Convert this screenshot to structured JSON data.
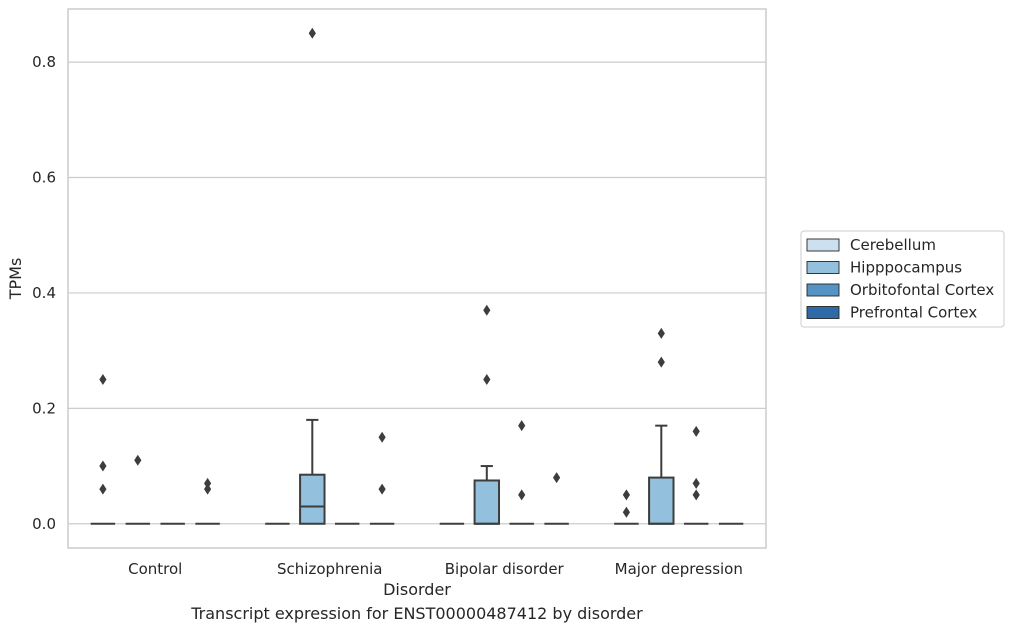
{
  "caption": "Transcript expression for ENST00000487412 by disorder",
  "chart_data": {
    "type": "box",
    "xlabel": "Disorder",
    "ylabel": "TPMs",
    "ylim": [
      -0.042,
      0.892
    ],
    "yticks": [
      0.0,
      0.2,
      0.4,
      0.6,
      0.8
    ],
    "ytick_labels": [
      "0.0",
      "0.2",
      "0.4",
      "0.6",
      "0.8"
    ],
    "grid": "horizontal",
    "legend_position": "right",
    "categories": [
      "Control",
      "Schizophrenia",
      "Bipolar disorder",
      "Major depression"
    ],
    "series": [
      {
        "name": "Cerebellum",
        "color": "#cde0f0",
        "boxes": [
          {
            "q1": 0,
            "median": 0,
            "q3": 0,
            "whislo": 0,
            "whishi": 0,
            "fliers": [
              0.25,
              0.1,
              0.06
            ]
          },
          {
            "q1": 0,
            "median": 0,
            "q3": 0,
            "whislo": 0,
            "whishi": 0,
            "fliers": []
          },
          {
            "q1": 0,
            "median": 0,
            "q3": 0,
            "whislo": 0,
            "whishi": 0,
            "fliers": []
          },
          {
            "q1": 0,
            "median": 0,
            "q3": 0,
            "whislo": 0,
            "whishi": 0,
            "fliers": [
              0.05,
              0.02
            ]
          }
        ]
      },
      {
        "name": "Hipppocampus",
        "color": "#93c0dd",
        "boxes": [
          {
            "q1": 0,
            "median": 0,
            "q3": 0,
            "whislo": 0,
            "whishi": 0,
            "fliers": [
              0.11
            ]
          },
          {
            "q1": 0,
            "median": 0.03,
            "q3": 0.085,
            "whislo": 0,
            "whishi": 0.18,
            "fliers": [
              0.85
            ]
          },
          {
            "q1": 0,
            "median": 0,
            "q3": 0.075,
            "whislo": 0,
            "whishi": 0.1,
            "fliers": [
              0.37,
              0.25
            ]
          },
          {
            "q1": 0,
            "median": 0,
            "q3": 0.08,
            "whislo": 0,
            "whishi": 0.17,
            "fliers": [
              0.33,
              0.28
            ]
          }
        ]
      },
      {
        "name": "Orbitofontal Cortex",
        "color": "#5593c4",
        "boxes": [
          {
            "q1": 0,
            "median": 0,
            "q3": 0,
            "whislo": 0,
            "whishi": 0,
            "fliers": []
          },
          {
            "q1": 0,
            "median": 0,
            "q3": 0,
            "whislo": 0,
            "whishi": 0,
            "fliers": []
          },
          {
            "q1": 0,
            "median": 0,
            "q3": 0,
            "whislo": 0,
            "whishi": 0,
            "fliers": [
              0.17,
              0.05
            ]
          },
          {
            "q1": 0,
            "median": 0,
            "q3": 0,
            "whislo": 0,
            "whishi": 0,
            "fliers": [
              0.16,
              0.07,
              0.05
            ]
          }
        ]
      },
      {
        "name": "Prefrontal Cortex",
        "color": "#2f6aa8",
        "boxes": [
          {
            "q1": 0,
            "median": 0,
            "q3": 0,
            "whislo": 0,
            "whishi": 0,
            "fliers": [
              0.07,
              0.06
            ]
          },
          {
            "q1": 0,
            "median": 0,
            "q3": 0,
            "whislo": 0,
            "whishi": 0,
            "fliers": [
              0.15,
              0.06
            ]
          },
          {
            "q1": 0,
            "median": 0,
            "q3": 0,
            "whislo": 0,
            "whishi": 0,
            "fliers": [
              0.08
            ]
          },
          {
            "q1": 0,
            "median": 0,
            "q3": 0,
            "whislo": 0,
            "whishi": 0,
            "fliers": []
          }
        ]
      }
    ]
  }
}
